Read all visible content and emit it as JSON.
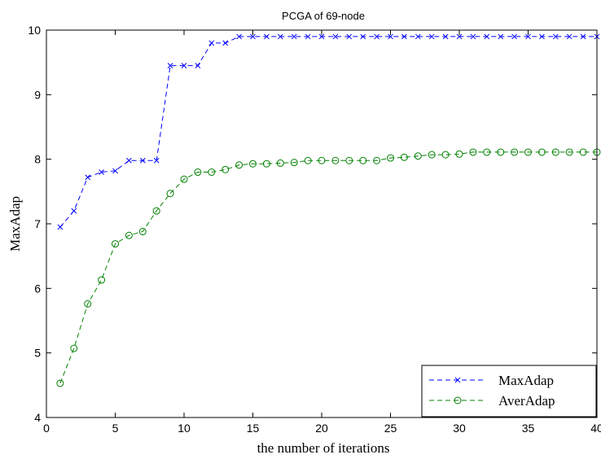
{
  "chart_data": {
    "type": "line",
    "title": "PCGA of 69-node",
    "xlabel": "the number of iterations",
    "ylabel": "MaxAdap",
    "xlim": [
      0,
      40
    ],
    "ylim": [
      4,
      10
    ],
    "xticks": [
      0,
      5,
      10,
      15,
      20,
      25,
      30,
      35,
      40
    ],
    "yticks": [
      4,
      5,
      6,
      7,
      8,
      9,
      10
    ],
    "grid": false,
    "legend_position": "bottom-right",
    "x": [
      1,
      2,
      3,
      4,
      5,
      6,
      7,
      8,
      9,
      10,
      11,
      12,
      13,
      14,
      15,
      16,
      17,
      18,
      19,
      20,
      21,
      22,
      23,
      24,
      25,
      26,
      27,
      28,
      29,
      30,
      31,
      32,
      33,
      34,
      35,
      36,
      37,
      38,
      39,
      40
    ],
    "series": [
      {
        "name": "MaxAdap",
        "color": "#0000ff",
        "line_style": "dashed",
        "marker": "x",
        "values": [
          6.95,
          7.2,
          7.72,
          7.8,
          7.82,
          7.98,
          7.98,
          7.98,
          9.45,
          9.45,
          9.45,
          9.8,
          9.8,
          9.9,
          9.9,
          9.9,
          9.9,
          9.9,
          9.9,
          9.9,
          9.9,
          9.9,
          9.9,
          9.9,
          9.9,
          9.9,
          9.9,
          9.9,
          9.9,
          9.9,
          9.9,
          9.9,
          9.9,
          9.9,
          9.9,
          9.9,
          9.9,
          9.9,
          9.9,
          9.9
        ]
      },
      {
        "name": "AverAdap",
        "color": "#008000",
        "line_style": "dashed",
        "marker": "o",
        "values": [
          4.53,
          5.07,
          5.76,
          6.13,
          6.69,
          6.82,
          6.88,
          7.2,
          7.47,
          7.69,
          7.8,
          7.8,
          7.84,
          7.91,
          7.93,
          7.93,
          7.94,
          7.95,
          7.98,
          7.98,
          7.98,
          7.98,
          7.98,
          7.98,
          8.02,
          8.03,
          8.05,
          8.07,
          8.07,
          8.08,
          8.11,
          8.11,
          8.11,
          8.11,
          8.11,
          8.11,
          8.11,
          8.11,
          8.11,
          8.11
        ]
      }
    ]
  }
}
